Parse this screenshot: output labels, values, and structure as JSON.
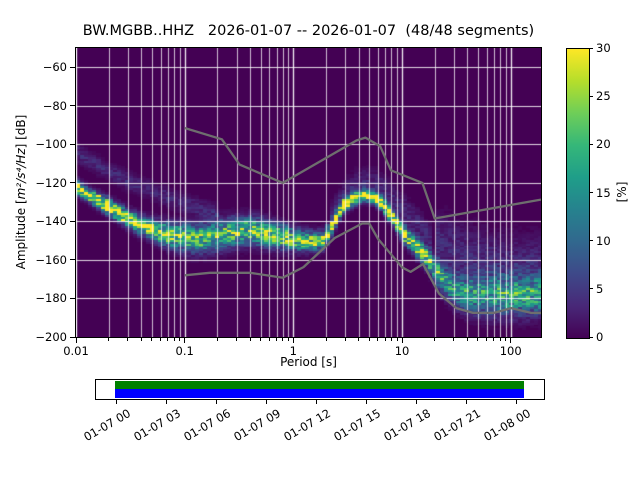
{
  "figure": {
    "title": "BW.MGBB..HHZ   2026-01-07 -- 2026-01-07  (48/48 segments)",
    "station_id": "BW.MGBB..HHZ",
    "date_range": "2026-01-07 -- 2026-01-07",
    "segments": "48/48 segments"
  },
  "axes": {
    "xlabel": "Period [s]",
    "ylabel_prefix": "Amplitude [",
    "ylabel_math": "m²/s⁴/Hz",
    "ylabel_suffix": "] [dB]",
    "x_tick_labels": [
      "0.01",
      "0.1",
      "1",
      "10",
      "100"
    ],
    "y_tick_labels": [
      "−60",
      "−80",
      "−100",
      "−120",
      "−140",
      "−160",
      "−180",
      "−200"
    ]
  },
  "colorbar": {
    "label": "[%]",
    "tick_labels": [
      "0",
      "5",
      "10",
      "15",
      "20",
      "25",
      "30"
    ],
    "tick_values": [
      0,
      5,
      10,
      15,
      20,
      25,
      30
    ],
    "min": 0,
    "max": 30,
    "colormap": "viridis",
    "gradient_stops": [
      "#440154",
      "#482878",
      "#3e4989",
      "#31688e",
      "#26828e",
      "#1f9e89",
      "#35b779",
      "#6ece58",
      "#b5de2b",
      "#fde725"
    ]
  },
  "timeline": {
    "tick_labels": [
      "01-07 00",
      "01-07 03",
      "01-07 06",
      "01-07 09",
      "01-07 12",
      "01-07 15",
      "01-07 18",
      "01-07 21",
      "01-08 00"
    ],
    "coverage_top_color": "#008000",
    "coverage_bottom_color": "#0000ff"
  },
  "chart_data": {
    "type": "heatmap",
    "title": "BW.MGBB..HHZ   2026-01-07 -- 2026-01-07  (48/48 segments)",
    "xlabel": "Period [s]",
    "ylabel": "Amplitude [m²/s⁴/Hz] [dB]",
    "x_scale": "log",
    "xlim": [
      0.01,
      190
    ],
    "ylim": [
      -200,
      -50
    ],
    "x_tick_values": [
      0.01,
      0.1,
      1,
      10,
      100
    ],
    "y_tick_values": [
      -60,
      -80,
      -100,
      -120,
      -140,
      -160,
      -180,
      -200
    ],
    "grid": true,
    "background_color": "#440154",
    "db_bin_width": 1,
    "period_bins_per_octave": 8,
    "probability_unit": "%",
    "psd_mode_ridge_comment": "columns: period_s, mode_dB, spread_sigma_dB, peak_probability_pct",
    "psd_mode_ridge": [
      [
        0.01,
        -122.0,
        2.2,
        30
      ],
      [
        0.013,
        -126.0,
        2.2,
        30
      ],
      [
        0.017,
        -130.0,
        2.4,
        29
      ],
      [
        0.022,
        -134.0,
        2.6,
        28
      ],
      [
        0.03,
        -138.5,
        2.8,
        27
      ],
      [
        0.04,
        -142.0,
        3.0,
        26
      ],
      [
        0.055,
        -145.0,
        3.4,
        24
      ],
      [
        0.075,
        -147.3,
        4.0,
        22
      ],
      [
        0.1,
        -148.6,
        4.4,
        20
      ],
      [
        0.13,
        -149.0,
        4.6,
        19
      ],
      [
        0.17,
        -148.2,
        4.8,
        19
      ],
      [
        0.22,
        -146.8,
        4.8,
        19
      ],
      [
        0.3,
        -145.3,
        4.6,
        20
      ],
      [
        0.4,
        -144.6,
        4.4,
        21
      ],
      [
        0.55,
        -146.0,
        4.2,
        21
      ],
      [
        0.75,
        -147.8,
        4.0,
        21
      ],
      [
        1.0,
        -149.3,
        3.6,
        22
      ],
      [
        1.3,
        -150.2,
        3.2,
        23
      ],
      [
        1.6,
        -150.3,
        3.0,
        24
      ],
      [
        1.9,
        -149.8,
        2.8,
        25
      ],
      [
        2.1,
        -146.0,
        2.6,
        26
      ],
      [
        2.35,
        -141.0,
        2.5,
        27
      ],
      [
        2.6,
        -135.5,
        2.4,
        28
      ],
      [
        2.9,
        -131.5,
        2.2,
        29
      ],
      [
        3.4,
        -129.0,
        2.1,
        30
      ],
      [
        4.0,
        -127.2,
        2.0,
        30
      ],
      [
        4.5,
        -126.3,
        2.0,
        30
      ],
      [
        5.5,
        -127.5,
        2.1,
        30
      ],
      [
        6.3,
        -129.5,
        2.2,
        30
      ],
      [
        7.3,
        -134.5,
        2.3,
        29
      ],
      [
        8.5,
        -139.0,
        2.4,
        28
      ],
      [
        9.5,
        -143.0,
        2.6,
        27
      ],
      [
        11.0,
        -148.0,
        2.8,
        26
      ],
      [
        13.0,
        -152.0,
        3.0,
        25
      ],
      [
        15.0,
        -155.5,
        3.3,
        23
      ],
      [
        17.5,
        -160.0,
        3.6,
        21
      ],
      [
        20.0,
        -164.5,
        4.0,
        19
      ],
      [
        23.5,
        -170.0,
        4.5,
        17
      ],
      [
        28.0,
        -174.0,
        5.0,
        16
      ],
      [
        34.0,
        -176.5,
        5.5,
        15
      ],
      [
        42.0,
        -177.8,
        6.0,
        15
      ],
      [
        60.0,
        -178.3,
        6.5,
        15
      ],
      [
        85.0,
        -178.4,
        6.5,
        16
      ],
      [
        120.0,
        -178.4,
        6.5,
        16
      ],
      [
        190.0,
        -177.9,
        6.5,
        16
      ]
    ],
    "faint_bands": [
      {
        "name": "short-period-secondary-band",
        "sigma": 3.0,
        "peak_pct": 3.2,
        "points": [
          [
            0.01,
            -104.5
          ],
          [
            0.014,
            -109.0
          ],
          [
            0.02,
            -114.0
          ],
          [
            0.03,
            -119.0
          ],
          [
            0.045,
            -123.0
          ],
          [
            0.065,
            -126.5
          ],
          [
            0.095,
            -130.0
          ],
          [
            0.14,
            -133.5
          ],
          [
            0.2,
            -136.5
          ]
        ]
      },
      {
        "name": "microseism-upper-halo",
        "sigma": 4.5,
        "peak_pct": 3.0,
        "points": [
          [
            2.1,
            -141.0
          ],
          [
            2.6,
            -131.0
          ],
          [
            3.2,
            -124.5
          ],
          [
            4.0,
            -120.5
          ],
          [
            5.0,
            -119.5
          ],
          [
            6.2,
            -121.5
          ],
          [
            7.5,
            -125.5
          ],
          [
            9.0,
            -130.0
          ],
          [
            11.0,
            -135.0
          ],
          [
            13.5,
            -140.0
          ],
          [
            16.0,
            -144.5
          ],
          [
            19.0,
            -149.0
          ]
        ]
      },
      {
        "name": "long-period-spread",
        "sigma": 10.0,
        "peak_pct": 3.2,
        "points": [
          [
            20,
            -150.0
          ],
          [
            28,
            -154.0
          ],
          [
            40,
            -158.0
          ],
          [
            60,
            -161.0
          ],
          [
            90,
            -162.5
          ],
          [
            140,
            -163.0
          ],
          [
            190,
            -162.5
          ]
        ]
      }
    ],
    "noise_models": {
      "color": "#6e6e6e",
      "nhnm": [
        [
          0.1,
          -91.5
        ],
        [
          0.22,
          -97.4
        ],
        [
          0.32,
          -110.5
        ],
        [
          0.8,
          -120.0
        ],
        [
          3.8,
          -98.0
        ],
        [
          4.6,
          -96.5
        ],
        [
          6.3,
          -101.0
        ],
        [
          7.9,
          -113.5
        ],
        [
          15.4,
          -120.0
        ],
        [
          20.0,
          -138.5
        ],
        [
          190.0,
          -128.7
        ]
      ],
      "nlnm": [
        [
          0.1,
          -168.0
        ],
        [
          0.17,
          -166.7
        ],
        [
          0.4,
          -166.7
        ],
        [
          0.8,
          -169.2
        ],
        [
          1.24,
          -163.7
        ],
        [
          2.4,
          -148.6
        ],
        [
          4.3,
          -141.1
        ],
        [
          5.0,
          -141.1
        ],
        [
          6.0,
          -149.0
        ],
        [
          10.0,
          -163.8
        ],
        [
          12.0,
          -166.2
        ],
        [
          15.6,
          -162.1
        ],
        [
          21.9,
          -177.5
        ],
        [
          31.6,
          -185.0
        ],
        [
          45.0,
          -187.5
        ],
        [
          70.0,
          -187.5
        ],
        [
          101.0,
          -185.0
        ],
        [
          154.0,
          -187.5
        ],
        [
          190.0,
          -187.5
        ]
      ]
    }
  }
}
